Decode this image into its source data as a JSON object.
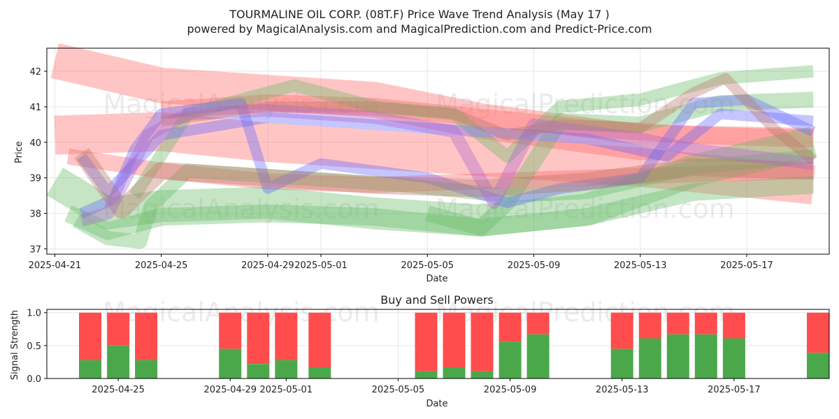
{
  "chart_data": [
    {
      "type": "line",
      "title_line1": "TOURMALINE OIL CORP. (08T.F) Price Wave Trend Analysis (May 17 )",
      "title_line2": "powered by MagicalAnalysis.com and MagicalPrediction.com and Predict-Price.com",
      "xlabel": "Date",
      "ylabel": "Price",
      "ylim": [
        36.85,
        42.65
      ],
      "xlim_days": [
        -0.3,
        29.1
      ],
      "start_date": "2025-04-21",
      "x_ticks": [
        {
          "day": 0,
          "label": "2025-04-21"
        },
        {
          "day": 4,
          "label": "2025-04-25"
        },
        {
          "day": 8,
          "label": "2025-04-29"
        },
        {
          "day": 10,
          "label": "2025-05-01"
        },
        {
          "day": 14,
          "label": "2025-05-05"
        },
        {
          "day": 18,
          "label": "2025-05-09"
        },
        {
          "day": 22,
          "label": "2025-05-13"
        },
        {
          "day": 26,
          "label": "2025-05-17"
        }
      ],
      "y_ticks": [
        37,
        38,
        39,
        40,
        41,
        42
      ],
      "grid": true,
      "watermarks": [
        "MagicalAnalysis.com",
        "MagicalPrediction.com"
      ],
      "series": [
        {
          "name": "red-wave-1",
          "color": "#ff6666",
          "band": 1.0,
          "points": [
            [
              0,
              42.3
            ],
            [
              4,
              41.6
            ],
            [
              8,
              41.4
            ],
            [
              12,
              41.2
            ],
            [
              16,
              40.6
            ],
            [
              22,
              40.0
            ],
            [
              28.5,
              39.9
            ]
          ]
        },
        {
          "name": "red-wave-2",
          "color": "#ff6666",
          "band": 1.1,
          "points": [
            [
              0,
              40.2
            ],
            [
              4,
              40.3
            ],
            [
              8,
              40.0
            ],
            [
              12,
              39.8
            ],
            [
              16,
              39.6
            ],
            [
              22,
              39.3
            ],
            [
              28.5,
              38.8
            ]
          ]
        },
        {
          "name": "red-wave-3",
          "color": "#ff6666",
          "band": 0.45,
          "points": [
            [
              0.5,
              39.6
            ],
            [
              4,
              39.2
            ],
            [
              8,
              38.9
            ],
            [
              12,
              38.8
            ],
            [
              16,
              38.9
            ],
            [
              20,
              39.0
            ],
            [
              24,
              39.1
            ],
            [
              28.5,
              39.2
            ]
          ]
        },
        {
          "name": "red-wave-4",
          "color": "#ff6666",
          "band": 0.5,
          "points": [
            [
              4,
              40.9
            ],
            [
              8,
              41.1
            ],
            [
              12,
              41.0
            ],
            [
              16,
              40.7
            ],
            [
              20,
              40.4
            ],
            [
              24,
              40.2
            ],
            [
              28.5,
              40.1
            ]
          ]
        },
        {
          "name": "green-wave-1",
          "color": "#66bb66",
          "band": 0.9,
          "points": [
            [
              0,
              38.9
            ],
            [
              2,
              38.0
            ],
            [
              4,
              38.2
            ],
            [
              8,
              38.3
            ],
            [
              12,
              38.0
            ],
            [
              16,
              37.8
            ],
            [
              20,
              38.1
            ],
            [
              24,
              39.2
            ],
            [
              28.5,
              40.0
            ]
          ]
        },
        {
          "name": "green-wave-2",
          "color": "#66bb66",
          "band": 0.5,
          "points": [
            [
              0.5,
              38.0
            ],
            [
              2,
              37.5
            ],
            [
              4,
              37.9
            ],
            [
              8,
              38.0
            ],
            [
              12,
              37.9
            ],
            [
              16,
              37.6
            ],
            [
              20,
              37.9
            ],
            [
              24,
              38.6
            ],
            [
              28.5,
              38.8
            ]
          ]
        },
        {
          "name": "green-wave-3",
          "color": "#66bb66",
          "band": 0.4,
          "points": [
            [
              0.8,
              37.8
            ],
            [
              2,
              37.3
            ],
            [
              3.2,
              37.2
            ],
            [
              3.6,
              38.2
            ],
            [
              5,
              39.2
            ],
            [
              9,
              39.0
            ],
            [
              13,
              38.8
            ],
            [
              17,
              38.5
            ],
            [
              20,
              38.6
            ],
            [
              24,
              39.3
            ],
            [
              28.5,
              39.6
            ]
          ]
        },
        {
          "name": "green-wave-4",
          "color": "#66bb66",
          "band": 0.35,
          "points": [
            [
              3,
              38.5
            ],
            [
              5,
              40.8
            ],
            [
              9,
              41.6
            ],
            [
              12,
              41.0
            ],
            [
              15,
              40.8
            ],
            [
              17,
              39.6
            ],
            [
              19,
              41.0
            ],
            [
              22,
              41.2
            ],
            [
              25,
              41.8
            ],
            [
              28.5,
              42.0
            ]
          ]
        },
        {
          "name": "green-wave-5",
          "color": "#66bb66",
          "band": 0.45,
          "points": [
            [
              14,
              38.0
            ],
            [
              16,
              37.6
            ],
            [
              17,
              38.3
            ],
            [
              19,
              40.6
            ],
            [
              22,
              40.5
            ],
            [
              25,
              41.1
            ],
            [
              28.5,
              41.2
            ]
          ]
        },
        {
          "name": "blue-wave-1",
          "color": "#6666ff",
          "band": 0.3,
          "points": [
            [
              1,
              38.0
            ],
            [
              2.2,
              38.4
            ],
            [
              3,
              39.8
            ],
            [
              4,
              40.8
            ],
            [
              7,
              41.1
            ],
            [
              8,
              38.7
            ],
            [
              10,
              39.4
            ],
            [
              14,
              39.0
            ],
            [
              17,
              38.3
            ],
            [
              19,
              38.7
            ],
            [
              22,
              39.0
            ],
            [
              24,
              41.1
            ],
            [
              26,
              41.2
            ],
            [
              28.5,
              40.3
            ]
          ]
        },
        {
          "name": "blue-wave-2",
          "color": "#6666ff",
          "band": 0.3,
          "points": [
            [
              1,
              39.6
            ],
            [
              2,
              38.6
            ],
            [
              4,
              40.2
            ],
            [
              8,
              40.7
            ],
            [
              12,
              40.5
            ],
            [
              16,
              40.3
            ],
            [
              20,
              40.1
            ],
            [
              23,
              39.6
            ],
            [
              25,
              40.8
            ],
            [
              28.5,
              40.6
            ]
          ]
        },
        {
          "name": "brown-wave-1",
          "color": "#bb7766",
          "band": 0.5,
          "points": [
            [
              1,
              39.7
            ],
            [
              2.5,
              38.1
            ],
            [
              4,
              39.2
            ],
            [
              8,
              39.0
            ],
            [
              12,
              38.8
            ],
            [
              16,
              38.7
            ],
            [
              20,
              38.9
            ],
            [
              24,
              39.3
            ],
            [
              28.5,
              39.2
            ]
          ]
        },
        {
          "name": "brown-wave-2",
          "color": "#bb7766",
          "band": 0.3,
          "points": [
            [
              4,
              40.6
            ],
            [
              8,
              41.0
            ],
            [
              12,
              41.0
            ],
            [
              15,
              40.8
            ],
            [
              17,
              40.2
            ],
            [
              19,
              40.5
            ],
            [
              22,
              40.4
            ],
            [
              24,
              41.4
            ],
            [
              25.2,
              41.8
            ],
            [
              27,
              40.4
            ],
            [
              28.5,
              39.5
            ]
          ]
        },
        {
          "name": "purple-wave-1",
          "color": "#aa66cc",
          "band": 0.35,
          "points": [
            [
              1,
              37.8
            ],
            [
              2,
              38.0
            ],
            [
              3.5,
              40.2
            ],
            [
              5,
              40.8
            ],
            [
              8,
              40.9
            ],
            [
              12,
              40.7
            ],
            [
              15,
              40.3
            ],
            [
              16.5,
              38.3
            ],
            [
              18,
              40.5
            ],
            [
              22,
              40.1
            ],
            [
              24,
              39.8
            ],
            [
              28.5,
              39.4
            ]
          ]
        }
      ]
    },
    {
      "type": "bar",
      "title": "Buy and Sell Powers",
      "xlabel": "Date",
      "ylabel": "Signal Strength",
      "ylim": [
        0,
        1.05
      ],
      "y_ticks": [
        "0.0",
        "0.5",
        "1.0"
      ],
      "x_ticks": [
        {
          "day": 4,
          "label": "2025-04-25"
        },
        {
          "day": 8,
          "label": "2025-04-29"
        },
        {
          "day": 10,
          "label": "2025-05-01"
        },
        {
          "day": 14,
          "label": "2025-05-05"
        },
        {
          "day": 18,
          "label": "2025-05-09"
        },
        {
          "day": 22,
          "label": "2025-05-13"
        },
        {
          "day": 26,
          "label": "2025-05-17"
        }
      ],
      "xlim_days": [
        1.45,
        29.4
      ],
      "buy_color": "#4aa84a",
      "sell_color": "#ff4d4d",
      "bars": [
        {
          "day": 3,
          "buy": 0.28
        },
        {
          "day": 4,
          "buy": 0.5
        },
        {
          "day": 5,
          "buy": 0.28
        },
        {
          "day": 8,
          "buy": 0.45
        },
        {
          "day": 9,
          "buy": 0.22
        },
        {
          "day": 10,
          "buy": 0.28
        },
        {
          "day": 11.2,
          "buy": 0.17
        },
        {
          "day": 15,
          "buy": 0.11
        },
        {
          "day": 16,
          "buy": 0.17
        },
        {
          "day": 17,
          "buy": 0.11
        },
        {
          "day": 18,
          "buy": 0.56
        },
        {
          "day": 19,
          "buy": 0.67
        },
        {
          "day": 22,
          "buy": 0.45
        },
        {
          "day": 23,
          "buy": 0.61
        },
        {
          "day": 24,
          "buy": 0.67
        },
        {
          "day": 25,
          "buy": 0.67
        },
        {
          "day": 26,
          "buy": 0.61
        },
        {
          "day": 29,
          "buy": 0.39
        }
      ]
    }
  ]
}
